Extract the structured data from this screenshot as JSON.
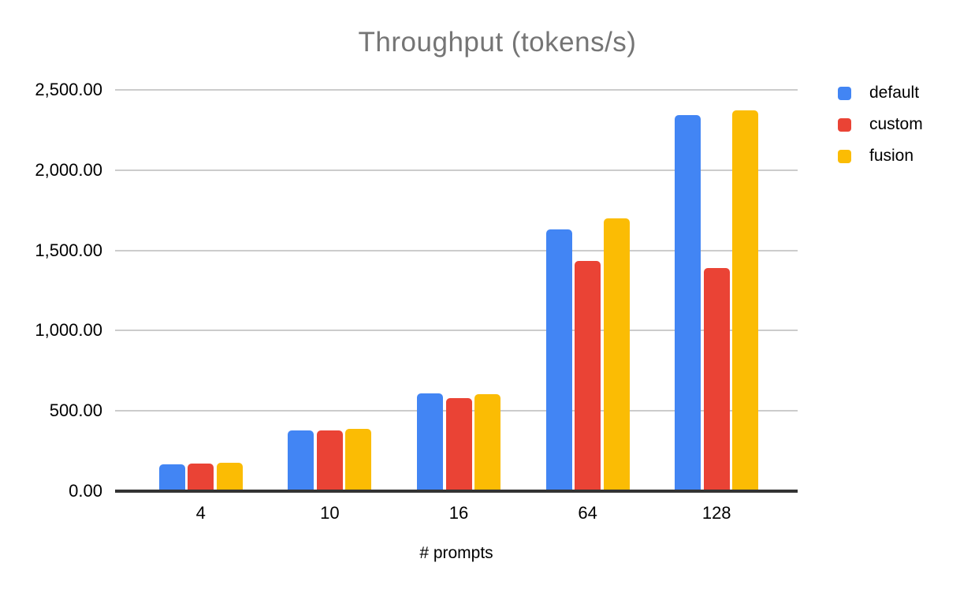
{
  "title": "Throughput (tokens/s)",
  "chart_data": {
    "type": "bar",
    "title": "Throughput (tokens/s)",
    "xlabel": "# prompts",
    "ylabel": "",
    "categories": [
      "4",
      "10",
      "16",
      "64",
      "128"
    ],
    "series": [
      {
        "name": "default",
        "color": "#4285F4",
        "values": [
          167,
          378,
          610,
          1632,
          2344
        ]
      },
      {
        "name": "custom",
        "color": "#EA4335",
        "values": [
          172,
          376,
          580,
          1432,
          1388
        ]
      },
      {
        "name": "fusion",
        "color": "#FBBC04",
        "values": [
          177,
          390,
          603,
          1698,
          2372
        ]
      }
    ],
    "ylim": [
      0,
      2500
    ],
    "ytick_values": [
      0,
      500,
      1000,
      1500,
      2000,
      2500
    ],
    "ytick_labels": [
      "0.00",
      "500.00",
      "1,000.00",
      "1,500.00",
      "2,000.00",
      "2,500.00"
    ],
    "grid": true,
    "legend_position": "top-right"
  },
  "colors": {
    "title_text": "#757575",
    "axis_text": "#000000",
    "gridline": "#cccccc",
    "axis_line": "#333333",
    "background": "#ffffff"
  }
}
